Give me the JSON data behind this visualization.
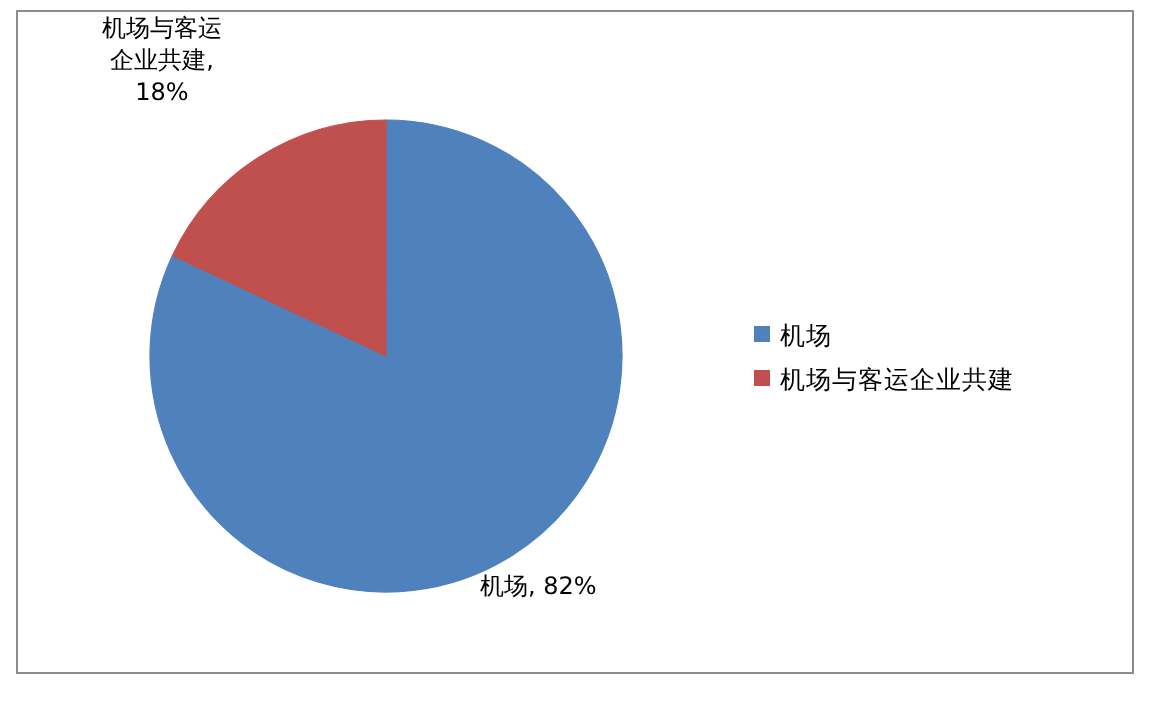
{
  "chart_data": {
    "type": "pie",
    "categories": [
      "机场",
      "机场与客运企业共建"
    ],
    "values": [
      82,
      18
    ],
    "colors": [
      "#4f81bd",
      "#c0504d"
    ],
    "value_labels": [
      "机场, 82%",
      "机场与客运企业共建, 18%"
    ],
    "legend": "right"
  }
}
